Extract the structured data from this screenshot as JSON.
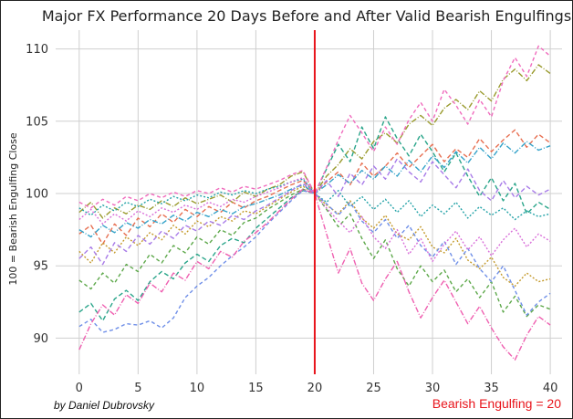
{
  "chart_data": {
    "type": "line",
    "title": "Major FX Performance 20 Days Before and After Valid Bearish Engulfings",
    "xlabel": "",
    "ylabel": "100 = Bearish Engulfing Close",
    "xlim": [
      -2,
      41
    ],
    "ylim": [
      87.5,
      111.3
    ],
    "xticks": [
      0,
      5,
      10,
      15,
      20,
      25,
      30,
      35,
      40
    ],
    "yticks": [
      90,
      95,
      100,
      105,
      110
    ],
    "grid": true,
    "legend": "none",
    "vertical_line": {
      "x": 20,
      "color": "#e8141b"
    },
    "series_colors": [
      "#e76f51",
      "#c49a2c",
      "#9a9b2e",
      "#5da84a",
      "#2aa58a",
      "#25a3a8",
      "#33a2c9",
      "#6f8fe8",
      "#a87be8",
      "#d96fd9",
      "#ef5fb0",
      "#f06bbd"
    ],
    "x": [
      0,
      1,
      2,
      3,
      4,
      5,
      6,
      7,
      8,
      9,
      10,
      11,
      12,
      13,
      14,
      15,
      16,
      17,
      18,
      19,
      20,
      21,
      22,
      23,
      24,
      25,
      26,
      27,
      28,
      29,
      30,
      31,
      32,
      33,
      34,
      35,
      36,
      37,
      38,
      39,
      40
    ],
    "series": [
      {
        "values": [
          97.2,
          97.8,
          96.5,
          97.9,
          97.1,
          98.3,
          97.7,
          98.6,
          98.0,
          98.9,
          98.4,
          99.1,
          98.7,
          99.4,
          99.0,
          99.5,
          99.8,
          100.2,
          100.6,
          100.9,
          100.0,
          100.8,
          101.5,
          100.6,
          102.1,
          101.2,
          101.9,
          102.8,
          101.8,
          102.6,
          103.4,
          102.2,
          103.1,
          102.5,
          103.8,
          102.9,
          103.7,
          104.4,
          103.2,
          104.1,
          103.5
        ]
      },
      {
        "values": [
          96.0,
          95.2,
          96.6,
          95.9,
          97.0,
          96.4,
          97.3,
          96.8,
          97.8,
          97.2,
          98.1,
          97.7,
          98.4,
          98.1,
          98.8,
          98.6,
          99.1,
          99.6,
          100.1,
          100.5,
          100.0,
          99.2,
          98.6,
          99.5,
          98.3,
          97.6,
          98.5,
          97.2,
          96.8,
          97.7,
          96.3,
          95.9,
          96.9,
          95.4,
          94.8,
          95.6,
          94.2,
          93.6,
          94.5,
          93.9,
          94.1
        ]
      },
      {
        "values": [
          98.7,
          99.4,
          98.3,
          99.0,
          98.6,
          99.2,
          98.9,
          99.5,
          99.1,
          99.7,
          99.3,
          99.6,
          99.9,
          99.4,
          100.1,
          99.8,
          100.3,
          100.6,
          101.2,
          101.5,
          100.0,
          101.2,
          102.0,
          103.1,
          102.4,
          103.6,
          104.2,
          103.5,
          104.8,
          105.4,
          104.7,
          105.9,
          106.5,
          105.8,
          107.1,
          106.4,
          107.9,
          108.6,
          107.8,
          108.9,
          108.3
        ]
      },
      {
        "values": [
          94.0,
          93.4,
          94.5,
          93.8,
          95.1,
          94.6,
          95.8,
          95.2,
          96.4,
          95.9,
          97.0,
          96.5,
          97.5,
          97.1,
          98.0,
          98.3,
          98.9,
          99.4,
          99.9,
          100.3,
          100.0,
          98.9,
          97.7,
          98.6,
          96.9,
          95.5,
          96.8,
          94.8,
          93.6,
          95.0,
          93.9,
          94.7,
          93.2,
          94.1,
          92.8,
          93.9,
          91.8,
          92.9,
          91.5,
          92.3,
          92.0
        ]
      },
      {
        "values": [
          91.8,
          92.4,
          91.2,
          92.7,
          93.3,
          92.6,
          93.9,
          94.6,
          94.1,
          95.2,
          95.8,
          95.3,
          96.4,
          96.9,
          96.6,
          97.6,
          98.3,
          99.0,
          99.7,
          100.2,
          100.0,
          101.7,
          103.4,
          102.2,
          104.6,
          103.1,
          105.3,
          103.8,
          102.6,
          104.1,
          102.9,
          101.5,
          102.8,
          101.2,
          99.8,
          101.1,
          99.5,
          100.7,
          98.6,
          99.4,
          98.9
        ]
      },
      {
        "values": [
          99.0,
          98.5,
          99.2,
          98.8,
          99.4,
          99.1,
          99.6,
          99.3,
          99.8,
          99.5,
          99.9,
          99.7,
          100.1,
          99.9,
          100.2,
          100.0,
          100.3,
          100.5,
          100.8,
          101.0,
          100.0,
          99.4,
          100.2,
          99.1,
          99.8,
          98.9,
          99.6,
          98.7,
          99.5,
          98.4,
          99.2,
          98.6,
          99.4,
          98.3,
          99.1,
          98.5,
          99.0,
          98.2,
          98.8,
          98.4,
          98.6
        ]
      },
      {
        "values": [
          97.5,
          97.0,
          97.8,
          97.3,
          98.0,
          97.6,
          98.2,
          97.9,
          98.5,
          98.1,
          98.7,
          98.4,
          98.9,
          98.6,
          99.1,
          99.3,
          99.6,
          99.9,
          100.3,
          100.6,
          100.0,
          100.6,
          101.3,
          100.7,
          101.6,
          101.0,
          101.9,
          101.2,
          102.3,
          101.5,
          102.6,
          101.8,
          102.9,
          102.1,
          103.2,
          102.4,
          103.5,
          102.8,
          103.6,
          103.0,
          103.3
        ]
      },
      {
        "values": [
          90.8,
          91.3,
          90.4,
          90.6,
          91.0,
          90.9,
          91.2,
          90.7,
          91.4,
          92.8,
          93.6,
          94.2,
          95.0,
          95.7,
          96.3,
          97.0,
          97.9,
          98.7,
          99.5,
          100.2,
          100.0,
          99.3,
          98.5,
          99.4,
          98.1,
          97.3,
          98.2,
          96.9,
          97.8,
          96.4,
          95.6,
          96.7,
          95.1,
          96.2,
          94.8,
          93.9,
          95.0,
          93.3,
          91.6,
          92.5,
          93.1
        ]
      },
      {
        "values": [
          95.5,
          96.3,
          95.1,
          96.6,
          96.0,
          97.1,
          96.5,
          97.4,
          96.9,
          97.8,
          97.4,
          98.1,
          97.8,
          98.5,
          98.2,
          98.8,
          99.2,
          99.7,
          100.2,
          100.7,
          100.0,
          100.9,
          99.8,
          101.4,
          100.6,
          101.9,
          101.0,
          102.4,
          101.5,
          100.8,
          102.2,
          101.3,
          100.4,
          101.7,
          100.2,
          99.5,
          100.9,
          99.7,
          100.5,
          99.9,
          100.3
        ]
      },
      {
        "values": [
          98.2,
          98.9,
          97.9,
          98.6,
          98.1,
          98.8,
          98.4,
          99.0,
          98.7,
          99.2,
          98.9,
          99.4,
          99.1,
          99.6,
          99.4,
          99.8,
          100.1,
          100.4,
          100.8,
          101.1,
          100.0,
          99.0,
          98.1,
          97.3,
          98.4,
          97.0,
          96.2,
          97.5,
          95.8,
          96.9,
          95.3,
          96.5,
          97.4,
          96.1,
          97.0,
          95.7,
          96.8,
          97.6,
          96.3,
          97.2,
          96.7
        ]
      },
      {
        "values": [
          89.2,
          91.0,
          92.3,
          91.6,
          93.0,
          92.4,
          93.8,
          93.2,
          94.5,
          94.0,
          95.3,
          94.8,
          96.0,
          95.6,
          96.7,
          97.3,
          98.0,
          98.8,
          99.6,
          100.3,
          100.0,
          97.2,
          94.5,
          96.2,
          93.8,
          92.6,
          94.1,
          95.3,
          93.2,
          91.4,
          92.8,
          94.0,
          92.5,
          91.0,
          92.2,
          90.7,
          89.4,
          88.5,
          90.2,
          91.5,
          90.9
        ]
      },
      {
        "values": [
          99.4,
          99.0,
          99.6,
          99.2,
          99.8,
          99.5,
          100.0,
          99.7,
          100.1,
          99.8,
          100.2,
          100.0,
          100.4,
          100.1,
          100.5,
          100.3,
          100.6,
          100.9,
          101.3,
          101.6,
          100.0,
          101.8,
          103.7,
          105.4,
          104.2,
          102.9,
          104.6,
          103.4,
          105.1,
          106.3,
          105.0,
          107.2,
          106.1,
          104.8,
          106.5,
          105.3,
          107.8,
          109.4,
          108.1,
          110.2,
          109.5
        ]
      }
    ]
  },
  "credit": "by Daniel Dubrovsky",
  "annotation": "Bearish Engulfing = 20"
}
